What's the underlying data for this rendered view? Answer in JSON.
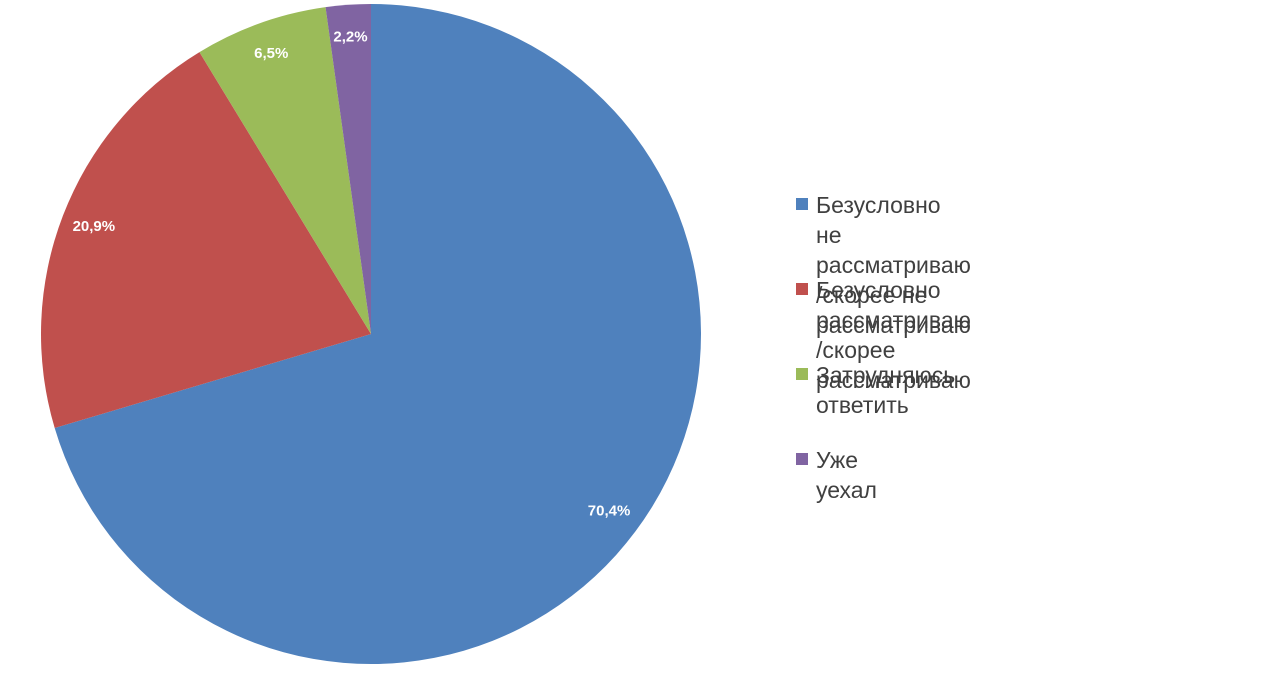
{
  "chart_data": {
    "type": "pie",
    "categories": [
      "Безусловно не рассматриваю\n/скорее не рассматриваю",
      "Безусловно рассматриваю\n/скорее рассматриваю",
      "Затрудняюсь ответить",
      "Уже уехал"
    ],
    "values": [
      70.4,
      20.9,
      6.5,
      2.2
    ],
    "value_labels": [
      "70,4%",
      "20,9%",
      "6,5%",
      "2,2%"
    ],
    "colors": [
      "#4f81bd",
      "#c0504d",
      "#9bbb59",
      "#8064a2"
    ],
    "legend": "right"
  }
}
